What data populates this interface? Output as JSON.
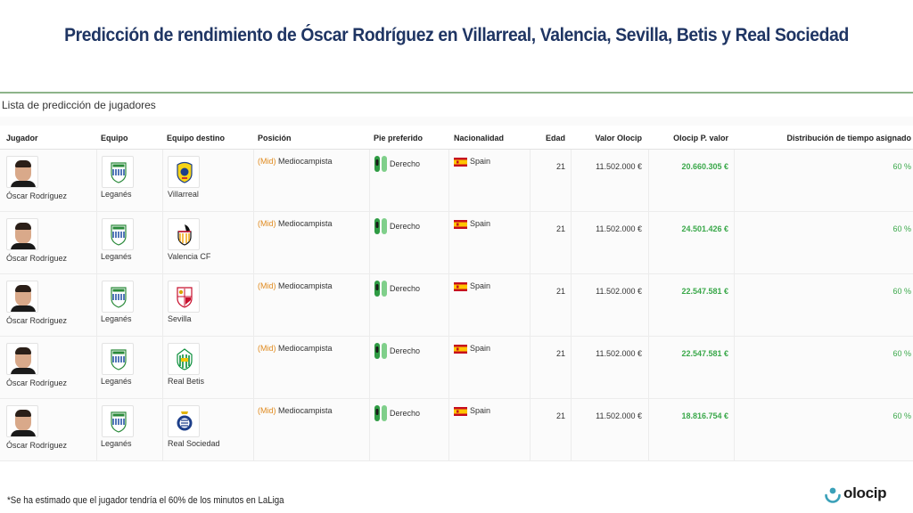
{
  "title": "Predicción de rendimiento de Óscar Rodríguez en Villarreal, Valencia, Sevilla, Betis y Real Sociedad",
  "panel_title": "Lista de predicción de jugadores",
  "headers": {
    "jugador": "Jugador",
    "equipo": "Equipo",
    "destino": "Equipo destino",
    "posicion": "Posición",
    "pie": "Pie preferido",
    "nacionalidad": "Nacionalidad",
    "edad": "Edad",
    "valor": "Valor Olocip",
    "pvalor": "Olocip P. valor",
    "distribucion": "Distribución de tiempo asignado"
  },
  "rows": [
    {
      "player": "Óscar Rodríguez",
      "team": "Leganés",
      "dest": "Villarreal",
      "pos_tag": "(Mid)",
      "pos": "Mediocampista",
      "foot": "Derecho",
      "nat": "Spain",
      "age": "21",
      "value": "11.502.000 €",
      "pvalue": "20.660.305 €",
      "dist": "60 %"
    },
    {
      "player": "Óscar Rodríguez",
      "team": "Leganés",
      "dest": "Valencia CF",
      "pos_tag": "(Mid)",
      "pos": "Mediocampista",
      "foot": "Derecho",
      "nat": "Spain",
      "age": "21",
      "value": "11.502.000 €",
      "pvalue": "24.501.426 €",
      "dist": "60 %"
    },
    {
      "player": "Óscar Rodríguez",
      "team": "Leganés",
      "dest": "Sevilla",
      "pos_tag": "(Mid)",
      "pos": "Mediocampista",
      "foot": "Derecho",
      "nat": "Spain",
      "age": "21",
      "value": "11.502.000 €",
      "pvalue": "22.547.581 €",
      "dist": "60 %"
    },
    {
      "player": "Óscar Rodríguez",
      "team": "Leganés",
      "dest": "Real Betis",
      "pos_tag": "(Mid)",
      "pos": "Mediocampista",
      "foot": "Derecho",
      "nat": "Spain",
      "age": "21",
      "value": "11.502.000 €",
      "pvalue": "22.547.581 €",
      "dist": "60 %"
    },
    {
      "player": "Óscar Rodríguez",
      "team": "Leganés",
      "dest": "Real Sociedad",
      "pos_tag": "(Mid)",
      "pos": "Mediocampista",
      "foot": "Derecho",
      "nat": "Spain",
      "age": "21",
      "value": "11.502.000 €",
      "pvalue": "18.816.754 €",
      "dist": "60 %"
    }
  ],
  "footnote": "*Se ha estimado que el jugador tendría el 60% de los minutos en LaLiga",
  "logo_text": "olocip",
  "colors": {
    "title": "#1f3563",
    "accent_green": "#3aa84a",
    "position_orange": "#e08a1e",
    "panel_rule": "#8db48a"
  },
  "icons": {
    "player_photo": "player-avatar-icon",
    "team_crest": "crest-icon",
    "boots": "boots-icon",
    "flag": "spain-flag-icon",
    "logo": "olocip-logo-icon"
  }
}
